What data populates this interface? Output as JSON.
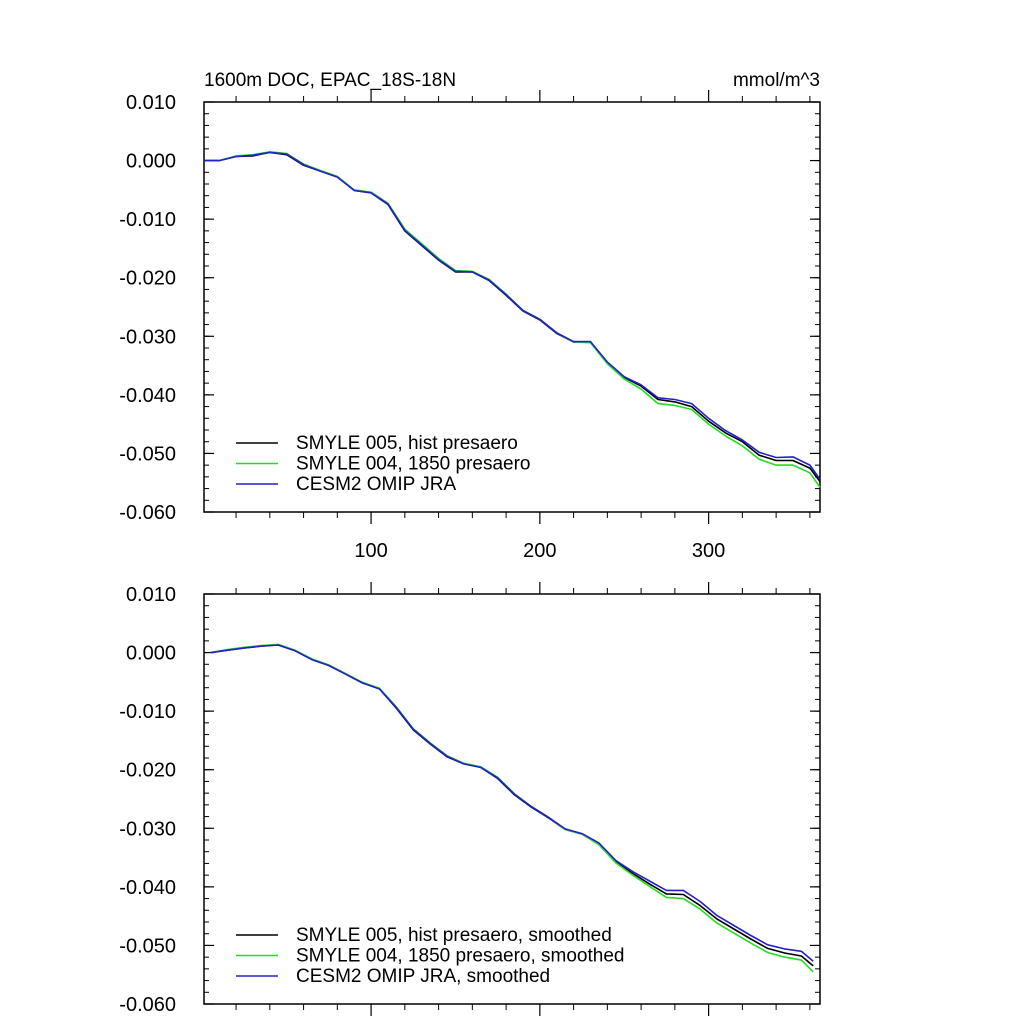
{
  "chart_data": [
    {
      "type": "line",
      "title": "1600m DOC, EPAC_18S-18N",
      "units": "mmol/m^3",
      "xlim": [
        1,
        366
      ],
      "ylim": [
        -0.06,
        0.01
      ],
      "xticks": [
        {
          "value": 100,
          "label": "100"
        },
        {
          "value": 200,
          "label": "200"
        },
        {
          "value": 300,
          "label": "300"
        }
      ],
      "yticks": [
        {
          "value": 0.01,
          "label": "0.010"
        },
        {
          "value": 0.0,
          "label": "0.000"
        },
        {
          "value": -0.01,
          "label": "-0.010"
        },
        {
          "value": -0.02,
          "label": "-0.020"
        },
        {
          "value": -0.03,
          "label": "-0.030"
        },
        {
          "value": -0.04,
          "label": "-0.040"
        },
        {
          "value": -0.05,
          "label": "-0.050"
        },
        {
          "value": -0.06,
          "label": "-0.060"
        }
      ],
      "legend_position": "bottom-left",
      "grid": false,
      "series": [
        {
          "name": "SMYLE 005, hist presaero",
          "color": "#000000",
          "x": [
            1,
            10,
            20,
            30,
            40,
            50,
            60,
            70,
            80,
            90,
            100,
            110,
            120,
            130,
            140,
            150,
            160,
            170,
            180,
            190,
            200,
            210,
            220,
            230,
            240,
            250,
            260,
            270,
            280,
            290,
            300,
            310,
            320,
            330,
            340,
            350,
            360,
            366
          ],
          "y": [
            0.0,
            0.0,
            0.0007,
            0.0008,
            0.0014,
            0.001,
            -0.0008,
            -0.0018,
            -0.0028,
            -0.0051,
            -0.0055,
            -0.0075,
            -0.012,
            -0.0145,
            -0.017,
            -0.019,
            -0.019,
            -0.0205,
            -0.023,
            -0.0257,
            -0.0272,
            -0.0295,
            -0.031,
            -0.031,
            -0.0345,
            -0.037,
            -0.0385,
            -0.0408,
            -0.0412,
            -0.042,
            -0.0445,
            -0.0465,
            -0.048,
            -0.0503,
            -0.0512,
            -0.0512,
            -0.0525,
            -0.0548
          ]
        },
        {
          "name": "SMYLE 004, 1850 presaero",
          "color": "#22dd22",
          "x": [
            1,
            10,
            20,
            30,
            40,
            50,
            60,
            70,
            80,
            90,
            100,
            110,
            120,
            130,
            140,
            150,
            160,
            170,
            180,
            190,
            200,
            210,
            220,
            230,
            240,
            250,
            260,
            270,
            280,
            290,
            300,
            310,
            320,
            330,
            340,
            350,
            360,
            366
          ],
          "y": [
            0.0,
            0.0,
            0.0008,
            0.001,
            0.0015,
            0.0012,
            -0.0006,
            -0.0017,
            -0.0027,
            -0.005,
            -0.0054,
            -0.0073,
            -0.0117,
            -0.0142,
            -0.0167,
            -0.0188,
            -0.0189,
            -0.0203,
            -0.0228,
            -0.0256,
            -0.0271,
            -0.0294,
            -0.031,
            -0.0311,
            -0.0347,
            -0.0373,
            -0.039,
            -0.0415,
            -0.0418,
            -0.0425,
            -0.045,
            -0.047,
            -0.0487,
            -0.051,
            -0.052,
            -0.052,
            -0.0533,
            -0.0558
          ]
        },
        {
          "name": "CESM2 OMIP JRA",
          "color": "#2222cc",
          "x": [
            1,
            10,
            20,
            30,
            40,
            50,
            60,
            70,
            80,
            90,
            100,
            110,
            120,
            130,
            140,
            150,
            160,
            170,
            180,
            190,
            200,
            210,
            220,
            230,
            240,
            250,
            260,
            270,
            280,
            290,
            300,
            310,
            320,
            330,
            340,
            350,
            360,
            366
          ],
          "y": [
            0.0,
            0.0,
            0.0007,
            0.0009,
            0.0014,
            0.0011,
            -0.0007,
            -0.0018,
            -0.0028,
            -0.0051,
            -0.0055,
            -0.0074,
            -0.0119,
            -0.0144,
            -0.0169,
            -0.0189,
            -0.019,
            -0.0204,
            -0.0229,
            -0.0256,
            -0.0271,
            -0.0294,
            -0.0309,
            -0.0309,
            -0.0344,
            -0.0369,
            -0.0383,
            -0.0405,
            -0.0408,
            -0.0415,
            -0.044,
            -0.0461,
            -0.0477,
            -0.0498,
            -0.0507,
            -0.0506,
            -0.052,
            -0.0544
          ]
        }
      ]
    },
    {
      "type": "line",
      "title": "",
      "units": "",
      "xlim": [
        1,
        366
      ],
      "ylim": [
        -0.06,
        0.01
      ],
      "xticks": [
        {
          "value": 100,
          "label": ""
        },
        {
          "value": 200,
          "label": ""
        },
        {
          "value": 300,
          "label": ""
        }
      ],
      "yticks": [
        {
          "value": 0.01,
          "label": "0.010"
        },
        {
          "value": 0.0,
          "label": "0.000"
        },
        {
          "value": -0.01,
          "label": "-0.010"
        },
        {
          "value": -0.02,
          "label": "-0.020"
        },
        {
          "value": -0.03,
          "label": "-0.030"
        },
        {
          "value": -0.04,
          "label": "-0.040"
        },
        {
          "value": -0.05,
          "label": "-0.050"
        },
        {
          "value": -0.06,
          "label": "-0.060"
        }
      ],
      "legend_position": "bottom-left",
      "grid": false,
      "series": [
        {
          "name": "SMYLE 005, hist presaero, smoothed",
          "color": "#000000",
          "x": [
            5,
            15,
            25,
            35,
            45,
            55,
            65,
            75,
            85,
            95,
            105,
            115,
            125,
            135,
            145,
            155,
            165,
            175,
            185,
            195,
            205,
            215,
            225,
            235,
            245,
            255,
            265,
            275,
            285,
            295,
            305,
            315,
            325,
            335,
            345,
            355,
            362
          ],
          "y": [
            0.0,
            0.0004,
            0.0008,
            0.0011,
            0.0013,
            0.0003,
            -0.0012,
            -0.0022,
            -0.0037,
            -0.0052,
            -0.0062,
            -0.0095,
            -0.0132,
            -0.0156,
            -0.0178,
            -0.019,
            -0.0196,
            -0.0215,
            -0.0243,
            -0.0264,
            -0.0282,
            -0.0302,
            -0.031,
            -0.0327,
            -0.0357,
            -0.0377,
            -0.0395,
            -0.0412,
            -0.0413,
            -0.0432,
            -0.0455,
            -0.0472,
            -0.0489,
            -0.0505,
            -0.0513,
            -0.0518,
            -0.0535
          ]
        },
        {
          "name": "SMYLE 004, 1850 presaero, smoothed",
          "color": "#22dd22",
          "x": [
            5,
            15,
            25,
            35,
            45,
            55,
            65,
            75,
            85,
            95,
            105,
            115,
            125,
            135,
            145,
            155,
            165,
            175,
            185,
            195,
            205,
            215,
            225,
            235,
            245,
            255,
            265,
            275,
            285,
            295,
            305,
            315,
            325,
            335,
            345,
            355,
            362
          ],
          "y": [
            0.0,
            0.0005,
            0.0009,
            0.0012,
            0.0014,
            0.0004,
            -0.0011,
            -0.0021,
            -0.0036,
            -0.0051,
            -0.0061,
            -0.0093,
            -0.013,
            -0.0154,
            -0.0176,
            -0.0189,
            -0.0195,
            -0.0213,
            -0.0241,
            -0.0263,
            -0.0281,
            -0.0302,
            -0.031,
            -0.0328,
            -0.0359,
            -0.038,
            -0.0399,
            -0.0418,
            -0.042,
            -0.0438,
            -0.0462,
            -0.0479,
            -0.0496,
            -0.0512,
            -0.052,
            -0.0525,
            -0.0545
          ]
        },
        {
          "name": "CESM2 OMIP JRA, smoothed",
          "color": "#2222cc",
          "x": [
            5,
            15,
            25,
            35,
            45,
            55,
            65,
            75,
            85,
            95,
            105,
            115,
            125,
            135,
            145,
            155,
            165,
            175,
            185,
            195,
            205,
            215,
            225,
            235,
            245,
            255,
            265,
            275,
            285,
            295,
            305,
            315,
            325,
            335,
            345,
            355,
            362
          ],
          "y": [
            0.0,
            0.0004,
            0.0008,
            0.0011,
            0.0013,
            0.0003,
            -0.0012,
            -0.0022,
            -0.0037,
            -0.0052,
            -0.0062,
            -0.0094,
            -0.0131,
            -0.0155,
            -0.0177,
            -0.019,
            -0.0196,
            -0.0214,
            -0.0242,
            -0.0263,
            -0.0281,
            -0.0301,
            -0.0309,
            -0.0325,
            -0.0355,
            -0.0374,
            -0.039,
            -0.0406,
            -0.0406,
            -0.0425,
            -0.0449,
            -0.0466,
            -0.0483,
            -0.0499,
            -0.0506,
            -0.051,
            -0.0527
          ]
        }
      ]
    }
  ]
}
